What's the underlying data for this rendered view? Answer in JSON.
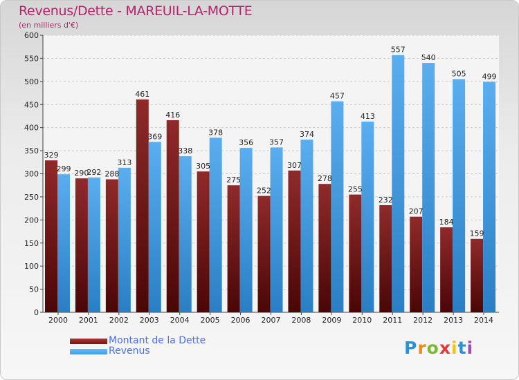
{
  "header": {
    "title": "Revenus/Dette - MAREUIL-LA-MOTTE",
    "subtitle": "(en milliers d'€)"
  },
  "legend": {
    "dette_label": "Montant de la Dette",
    "revenus_label": "Revenus"
  },
  "logo": {
    "letters": [
      "P",
      "r",
      "o",
      "x",
      "i",
      "t",
      "i"
    ],
    "colors": [
      "#2f8fd0",
      "#f08a1a",
      "#7ab830",
      "#e03a3a",
      "#f2c21b",
      "#2f8fd0",
      "#9c4fb5"
    ]
  },
  "colors": {
    "dette": "#7a1414",
    "revenus": "#3e9ee8"
  },
  "chart_data": {
    "type": "bar",
    "title": "Revenus/Dette - MAREUIL-LA-MOTTE",
    "ylabel": "(en milliers d'€)",
    "categories": [
      "2000",
      "2001",
      "2002",
      "2003",
      "2004",
      "2005",
      "2006",
      "2007",
      "2008",
      "2009",
      "2010",
      "2011",
      "2012",
      "2013",
      "2014"
    ],
    "series": [
      {
        "name": "Montant de la Dette",
        "values": [
          329,
          290,
          288,
          461,
          416,
          305,
          275,
          252,
          307,
          278,
          255,
          232,
          207,
          184,
          159
        ]
      },
      {
        "name": "Revenus",
        "values": [
          299,
          292,
          313,
          369,
          338,
          378,
          356,
          357,
          374,
          457,
          413,
          557,
          540,
          505,
          499
        ]
      }
    ],
    "ylim": [
      0,
      600
    ],
    "yticks": [
      0,
      50,
      100,
      150,
      200,
      250,
      300,
      350,
      400,
      450,
      500,
      550,
      600
    ],
    "grid": true,
    "legend_position": "bottom-left"
  }
}
